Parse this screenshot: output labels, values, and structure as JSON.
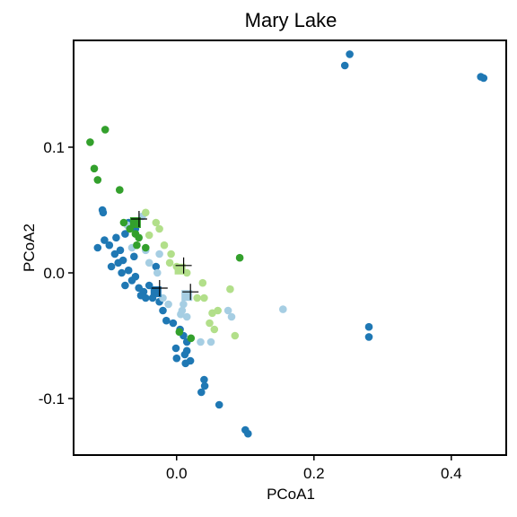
{
  "chart_data": {
    "type": "scatter",
    "title": "Mary Lake",
    "xlabel": "PCoA1",
    "ylabel": "PCoA2",
    "xlim": [
      -0.15,
      0.48
    ],
    "ylim": [
      -0.145,
      0.185
    ],
    "x_ticks": [
      0.0,
      0.2,
      0.4
    ],
    "x_tick_labels": [
      "0.0",
      "0.2",
      "0.4"
    ],
    "y_ticks": [
      -0.1,
      0.0,
      0.1
    ],
    "y_tick_labels": [
      "-0.1",
      "0.0",
      "0.1"
    ],
    "grid": false,
    "legend": "none",
    "series": [
      {
        "color": "#1f78b4",
        "points": [
          [
            0.252,
            0.174
          ],
          [
            0.245,
            0.165
          ],
          [
            0.443,
            0.156
          ],
          [
            0.447,
            0.155
          ],
          [
            0.28,
            -0.043
          ],
          [
            0.28,
            -0.051
          ],
          [
            -0.108,
            0.05
          ],
          [
            -0.107,
            0.048
          ],
          [
            -0.07,
            0.04
          ],
          [
            -0.06,
            0.035
          ],
          [
            -0.075,
            0.031
          ],
          [
            -0.088,
            0.028
          ],
          [
            -0.105,
            0.026
          ],
          [
            -0.098,
            0.022
          ],
          [
            -0.115,
            0.02
          ],
          [
            -0.082,
            0.018
          ],
          [
            -0.062,
            0.013
          ],
          [
            -0.09,
            0.015
          ],
          [
            -0.078,
            0.01
          ],
          [
            -0.085,
            0.008
          ],
          [
            -0.095,
            0.005
          ],
          [
            -0.08,
            0.0
          ],
          [
            -0.07,
            0.002
          ],
          [
            -0.06,
            -0.003
          ],
          [
            -0.065,
            -0.006
          ],
          [
            -0.075,
            -0.01
          ],
          [
            -0.055,
            -0.012
          ],
          [
            -0.048,
            -0.015
          ],
          [
            -0.052,
            -0.018
          ],
          [
            -0.04,
            -0.01
          ],
          [
            -0.03,
            0.005
          ],
          [
            -0.035,
            -0.02
          ],
          [
            -0.025,
            -0.023
          ],
          [
            -0.02,
            -0.03
          ],
          [
            -0.005,
            -0.04
          ],
          [
            0.005,
            -0.045
          ],
          [
            0.01,
            -0.05
          ],
          [
            0.015,
            -0.055
          ],
          [
            -0.001,
            -0.06
          ],
          [
            0.015,
            -0.062
          ],
          [
            0.012,
            -0.065
          ],
          [
            0.0,
            -0.068
          ],
          [
            0.02,
            -0.07
          ],
          [
            0.013,
            -0.072
          ],
          [
            0.04,
            -0.085
          ],
          [
            0.041,
            -0.09
          ],
          [
            0.036,
            -0.095
          ],
          [
            0.062,
            -0.105
          ],
          [
            0.1,
            -0.125
          ],
          [
            0.104,
            -0.128
          ],
          [
            -0.045,
            -0.02
          ],
          [
            -0.015,
            -0.038
          ]
        ],
        "centroid": [
          -0.03,
          -0.015
        ]
      },
      {
        "color": "#a6cee3",
        "points": [
          [
            -0.072,
            0.038
          ],
          [
            -0.05,
            0.045
          ],
          [
            -0.065,
            0.02
          ],
          [
            -0.045,
            0.018
          ],
          [
            -0.025,
            0.015
          ],
          [
            -0.04,
            0.008
          ],
          [
            -0.028,
            0.0
          ],
          [
            -0.03,
            -0.015
          ],
          [
            -0.02,
            -0.02
          ],
          [
            -0.012,
            -0.025
          ],
          [
            0.01,
            -0.025
          ],
          [
            0.008,
            -0.03
          ],
          [
            0.006,
            -0.033
          ],
          [
            0.015,
            -0.035
          ],
          [
            0.035,
            -0.055
          ],
          [
            0.05,
            -0.055
          ],
          [
            0.075,
            -0.03
          ],
          [
            0.08,
            -0.035
          ],
          [
            0.155,
            -0.029
          ]
        ],
        "centroid": [
          0.015,
          -0.018
        ]
      },
      {
        "color": "#33a02c",
        "points": [
          [
            -0.126,
            0.104
          ],
          [
            -0.104,
            0.114
          ],
          [
            -0.12,
            0.083
          ],
          [
            -0.115,
            0.074
          ],
          [
            -0.083,
            0.066
          ],
          [
            -0.077,
            0.04
          ],
          [
            -0.068,
            0.035
          ],
          [
            -0.06,
            0.031
          ],
          [
            -0.055,
            0.028
          ],
          [
            -0.058,
            0.022
          ],
          [
            -0.045,
            0.02
          ],
          [
            0.092,
            0.012
          ],
          [
            0.004,
            -0.047
          ],
          [
            0.021,
            -0.052
          ]
        ],
        "centroid": [
          -0.06,
          0.04
        ]
      },
      {
        "color": "#b2df8a",
        "points": [
          [
            -0.045,
            0.048
          ],
          [
            -0.03,
            0.04
          ],
          [
            -0.04,
            0.03
          ],
          [
            -0.025,
            0.035
          ],
          [
            -0.018,
            0.022
          ],
          [
            -0.008,
            0.015
          ],
          [
            -0.01,
            0.008
          ],
          [
            0.0,
            0.005
          ],
          [
            0.015,
            0.0
          ],
          [
            0.038,
            -0.008
          ],
          [
            0.04,
            -0.02
          ],
          [
            0.06,
            -0.03
          ],
          [
            0.052,
            -0.032
          ],
          [
            0.078,
            -0.013
          ],
          [
            0.055,
            -0.045
          ],
          [
            0.085,
            -0.05
          ],
          [
            0.03,
            -0.02
          ],
          [
            0.048,
            -0.04
          ]
        ],
        "centroid": [
          0.005,
          0.003
        ]
      }
    ]
  }
}
